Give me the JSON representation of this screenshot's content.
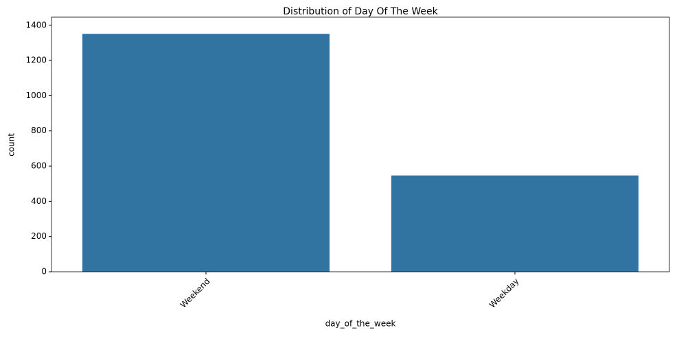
{
  "chart_data": {
    "type": "bar",
    "title": "Distribution of Day Of The Week",
    "x_label": "day_of_the_week",
    "y_label": "count",
    "categories": [
      "Weekend",
      "Weekday"
    ],
    "values": [
      1351,
      547
    ],
    "color": "#3274a1",
    "ylim": [
      0,
      1446
    ],
    "yticks": [
      0,
      200,
      400,
      600,
      800,
      1000,
      1200,
      1400
    ]
  }
}
